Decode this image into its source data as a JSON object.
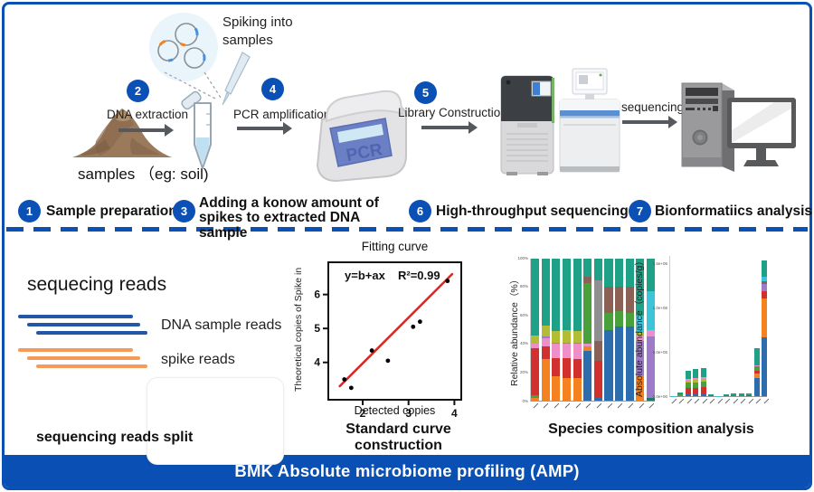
{
  "accent_blue": "#0b50b4",
  "top": {
    "spiking_label": "Spiking into samples",
    "samples_label": "samples （eg: soil)",
    "pcr_text": "PCR",
    "sequencing_label": "sequencing",
    "steps": [
      {
        "num": "1",
        "label": "Sample preparation"
      },
      {
        "num": "2",
        "label": "DNA extraction"
      },
      {
        "num": "3",
        "label": "Adding a konow amount of spikes to extracted DNA sample"
      },
      {
        "num": "4",
        "label": "PCR amplification"
      },
      {
        "num": "5",
        "label": "Library Construction"
      },
      {
        "num": "6",
        "label": "High-throughput sequencing"
      },
      {
        "num": "7",
        "label": "Bionformatiics analysis"
      }
    ]
  },
  "bottom": {
    "reads_title": "sequecing reads",
    "dna_reads_label": "DNA sample reads",
    "spike_reads_label": "spike reads",
    "dna_reads_color": "#2257a6",
    "spike_reads_color": "#f59a58",
    "reads_split_caption": "sequencing reads split",
    "scatter_caption": "Standard curve construction",
    "species_caption": "Species composition analysis"
  },
  "banner": {
    "text": "BMK Absolute microbiome profiling (AMP)"
  },
  "chart_data": [
    {
      "type": "scatter",
      "title": "Fitting curve",
      "xlabel": "Detected copies",
      "ylabel": "Theoretical copies of Spike in",
      "equation": "y=b+ax",
      "r2": "R²=0.99",
      "xlim": [
        1.25,
        4.15
      ],
      "ylim": [
        2.9,
        6.95
      ],
      "xticks": [
        2,
        3,
        4
      ],
      "yticks": [
        4,
        5,
        6
      ],
      "points": [
        [
          1.6,
          3.5
        ],
        [
          1.75,
          3.25
        ],
        [
          2.2,
          4.35
        ],
        [
          2.55,
          4.05
        ],
        [
          3.1,
          5.05
        ],
        [
          3.25,
          5.2
        ],
        [
          3.85,
          6.4
        ]
      ],
      "fit_line": {
        "x1": 1.5,
        "y1": 3.3,
        "x2": 3.95,
        "y2": 6.6,
        "color": "#e8231f"
      }
    },
    {
      "type": "bar",
      "stacked": true,
      "mode": "percent",
      "ylabel": "Relative abundance（%）",
      "legend_position": "none",
      "grid": false,
      "palette": {
        "teal": "#1fa187",
        "orange": "#f58220",
        "red": "#d22f2f",
        "pink": "#ee8fc9",
        "olive": "#b3bc35",
        "blue": "#2d6cad",
        "gray": "#8f8f8f",
        "brown": "#8b6155",
        "green": "#4aa03a",
        "cyan": "#3ec4d9",
        "purple": "#9e7bca",
        "darkteal": "#1d7a68"
      },
      "yticks": [
        {
          "v": 0,
          "label": "0%"
        },
        {
          "v": 20,
          "label": "20%"
        },
        {
          "v": 40,
          "label": "40%"
        },
        {
          "v": 60,
          "label": "60%"
        },
        {
          "v": 80,
          "label": "80%"
        },
        {
          "v": 100,
          "label": "100%"
        }
      ],
      "bars": [
        [
          [
            "orange",
            2
          ],
          [
            "green",
            2
          ],
          [
            "red",
            33
          ],
          [
            "pink",
            3
          ],
          [
            "olive",
            6
          ],
          [
            "teal",
            54
          ]
        ],
        [
          [
            "orange",
            29
          ],
          [
            "red",
            9
          ],
          [
            "pink",
            6
          ],
          [
            "purple",
            1
          ],
          [
            "olive",
            8
          ],
          [
            "teal",
            47
          ]
        ],
        [
          [
            "orange",
            17
          ],
          [
            "red",
            13
          ],
          [
            "pink",
            10
          ],
          [
            "purple",
            1
          ],
          [
            "olive",
            8
          ],
          [
            "teal",
            51
          ]
        ],
        [
          [
            "orange",
            16
          ],
          [
            "red",
            14
          ],
          [
            "pink",
            10
          ],
          [
            "purple",
            1
          ],
          [
            "olive",
            9
          ],
          [
            "teal",
            50
          ]
        ],
        [
          [
            "orange",
            16
          ],
          [
            "red",
            13
          ],
          [
            "pink",
            11
          ],
          [
            "purple",
            1
          ],
          [
            "olive",
            8
          ],
          [
            "teal",
            51
          ]
        ],
        [
          [
            "blue",
            35
          ],
          [
            "orange",
            3
          ],
          [
            "pink",
            2
          ],
          [
            "green",
            43
          ],
          [
            "brown",
            4
          ],
          [
            "teal",
            13
          ]
        ],
        [
          [
            "blue",
            2
          ],
          [
            "red",
            26
          ],
          [
            "brown",
            14
          ],
          [
            "gray",
            43
          ],
          [
            "teal",
            15
          ]
        ],
        [
          [
            "blue",
            50
          ],
          [
            "green",
            12
          ],
          [
            "brown",
            18
          ],
          [
            "teal",
            20
          ]
        ],
        [
          [
            "blue",
            52
          ],
          [
            "green",
            11
          ],
          [
            "brown",
            17
          ],
          [
            "teal",
            20
          ]
        ],
        [
          [
            "blue",
            52
          ],
          [
            "green",
            10
          ],
          [
            "brown",
            18
          ],
          [
            "teal",
            20
          ]
        ],
        [
          [
            "orange",
            18
          ],
          [
            "purple",
            24
          ],
          [
            "pink",
            4
          ],
          [
            "olive",
            2
          ],
          [
            "cyan",
            12
          ],
          [
            "teal",
            40
          ]
        ],
        [
          [
            "darkteal",
            2
          ],
          [
            "purple",
            43
          ],
          [
            "pink",
            5
          ],
          [
            "cyan",
            27
          ],
          [
            "teal",
            23
          ]
        ]
      ]
    },
    {
      "type": "bar",
      "stacked": true,
      "mode": "absolute",
      "ylabel": "Absolute abundance（copies/g）",
      "units": "1e5 copies/g",
      "ylim": [
        0,
        16
      ],
      "palette": {
        "teal": "#1fa187",
        "orange": "#f58220",
        "red": "#d22f2f",
        "pink": "#ee8fc9",
        "olive": "#b3bc35",
        "blue": "#2d6cad",
        "gray": "#8f8f8f",
        "brown": "#8b6155",
        "green": "#4aa03a",
        "cyan": "#3ec4d9",
        "purple": "#9e7bca",
        "darkteal": "#1d7a68"
      },
      "yticks": [
        {
          "v": 0,
          "label": "0.0e+00"
        },
        {
          "v": 5,
          "label": "5.0e+05"
        },
        {
          "v": 10,
          "label": "1.0e+06"
        },
        {
          "v": 15,
          "label": "1.5e+06"
        }
      ],
      "bars": [
        [
          [
            "cyan",
            0.2
          ]
        ],
        [
          [
            "green",
            0.35
          ],
          [
            "brown",
            0.1
          ],
          [
            "teal",
            0.2
          ]
        ],
        [
          [
            "blue",
            0.3
          ],
          [
            "red",
            0.6
          ],
          [
            "green",
            0.6
          ],
          [
            "olive",
            0.25
          ],
          [
            "pink",
            0.25
          ],
          [
            "teal",
            0.9
          ]
        ],
        [
          [
            "blue",
            0.3
          ],
          [
            "red",
            0.6
          ],
          [
            "green",
            0.7
          ],
          [
            "olive",
            0.25
          ],
          [
            "pink",
            0.25
          ],
          [
            "teal",
            1.0
          ]
        ],
        [
          [
            "blue",
            0.3
          ],
          [
            "red",
            0.7
          ],
          [
            "green",
            0.7
          ],
          [
            "olive",
            0.25
          ],
          [
            "pink",
            0.25
          ],
          [
            "teal",
            1.05
          ]
        ],
        [
          [
            "brown",
            0.15
          ],
          [
            "teal",
            0.35
          ]
        ],
        [
          [
            "cyan",
            0.12
          ],
          [
            "teal",
            0.1
          ]
        ],
        [
          [
            "brown",
            0.15
          ],
          [
            "teal",
            0.3
          ]
        ],
        [
          [
            "brown",
            0.2
          ],
          [
            "teal",
            0.35
          ]
        ],
        [
          [
            "brown",
            0.15
          ],
          [
            "teal",
            0.4
          ]
        ],
        [
          [
            "blue",
            0.1
          ],
          [
            "brown",
            0.15
          ],
          [
            "teal",
            0.35
          ]
        ],
        [
          [
            "blue",
            2.1
          ],
          [
            "orange",
            0.5
          ],
          [
            "red",
            0.3
          ],
          [
            "green",
            0.5
          ],
          [
            "pink",
            0.15
          ],
          [
            "teal",
            1.9
          ]
        ],
        [
          [
            "blue",
            6.7
          ],
          [
            "orange",
            4.5
          ],
          [
            "red",
            0.8
          ],
          [
            "purple",
            0.8
          ],
          [
            "brown",
            0.35
          ],
          [
            "cyan",
            0.5
          ],
          [
            "teal",
            1.8
          ]
        ]
      ]
    }
  ]
}
